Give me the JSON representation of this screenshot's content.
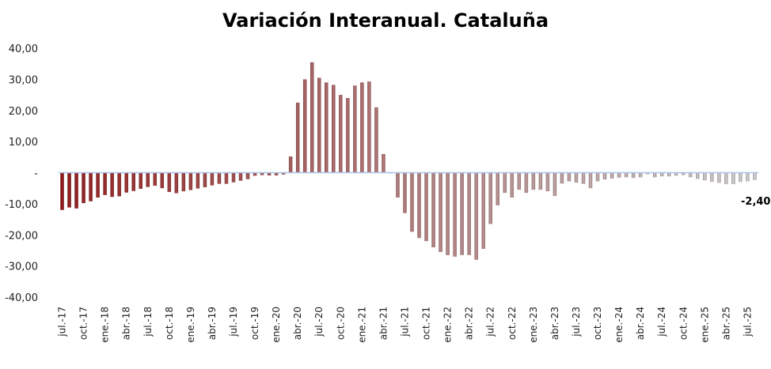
{
  "chart_data": {
    "type": "bar",
    "title": "Variación Interanual. Cataluña",
    "ylim": [
      -40,
      40
    ],
    "yticks": [
      {
        "value": 40,
        "label": "40,00"
      },
      {
        "value": 30,
        "label": "30,00"
      },
      {
        "value": 20,
        "label": "20,00"
      },
      {
        "value": 10,
        "label": "10,00"
      },
      {
        "value": 0,
        "label": "-"
      },
      {
        "value": -10,
        "label": "-10,00"
      },
      {
        "value": -20,
        "label": "-20,00"
      },
      {
        "value": -30,
        "label": "-30,00"
      },
      {
        "value": -40,
        "label": "-40,00"
      }
    ],
    "x_labels": [
      {
        "index": 0,
        "label": "jul.-17"
      },
      {
        "index": 3,
        "label": "oct.-17"
      },
      {
        "index": 6,
        "label": "ene.-18"
      },
      {
        "index": 9,
        "label": "abr.-18"
      },
      {
        "index": 12,
        "label": "jul.-18"
      },
      {
        "index": 15,
        "label": "oct.-18"
      },
      {
        "index": 18,
        "label": "ene.-19"
      },
      {
        "index": 21,
        "label": "abr.-19"
      },
      {
        "index": 24,
        "label": "jul.-19"
      },
      {
        "index": 27,
        "label": "oct.-19"
      },
      {
        "index": 30,
        "label": "ene.-20"
      },
      {
        "index": 33,
        "label": "abr.-20"
      },
      {
        "index": 36,
        "label": "jul.-20"
      },
      {
        "index": 39,
        "label": "oct.-20"
      },
      {
        "index": 42,
        "label": "ene.-21"
      },
      {
        "index": 45,
        "label": "abr.-21"
      },
      {
        "index": 48,
        "label": "jul.-21"
      },
      {
        "index": 51,
        "label": "oct.-21"
      },
      {
        "index": 54,
        "label": "ene.-22"
      },
      {
        "index": 57,
        "label": "abr.-22"
      },
      {
        "index": 60,
        "label": "jul.-22"
      },
      {
        "index": 63,
        "label": "oct.-22"
      },
      {
        "index": 66,
        "label": "ene.-23"
      },
      {
        "index": 69,
        "label": "abr.-23"
      },
      {
        "index": 72,
        "label": "jul.-23"
      },
      {
        "index": 75,
        "label": "oct.-23"
      },
      {
        "index": 78,
        "label": "ene.-24"
      },
      {
        "index": 81,
        "label": "abr.-24"
      },
      {
        "index": 84,
        "label": "jul.-24"
      },
      {
        "index": 87,
        "label": "oct.-24"
      },
      {
        "index": 90,
        "label": "ene.-25"
      },
      {
        "index": 93,
        "label": "abr.-25"
      },
      {
        "index": 96,
        "label": "jul.-25"
      }
    ],
    "values": [
      -12.0,
      -11.2,
      -11.5,
      -9.8,
      -9.2,
      -8.0,
      -7.2,
      -7.8,
      -7.6,
      -6.4,
      -5.9,
      -5.2,
      -4.6,
      -4.2,
      -5.0,
      -6.2,
      -6.6,
      -6.0,
      -5.6,
      -5.1,
      -4.7,
      -4.1,
      -3.6,
      -3.6,
      -3.1,
      -2.6,
      -2.1,
      -1.0,
      -0.8,
      -0.9,
      -0.9,
      -0.6,
      5.2,
      22.5,
      30.0,
      35.5,
      30.5,
      29.0,
      28.2,
      25.0,
      24.0,
      28.0,
      29.0,
      29.3,
      21.0,
      6.0,
      -0.2,
      -8.0,
      -13.0,
      -19.0,
      -21.0,
      -22.0,
      -24.0,
      -25.5,
      -26.5,
      -27.0,
      -26.5,
      -26.5,
      -28.0,
      -24.5,
      -16.5,
      -10.5,
      -6.5,
      -8.0,
      -5.5,
      -6.5,
      -5.5,
      -5.5,
      -6.0,
      -7.5,
      -3.5,
      -2.8,
      -3.2,
      -3.6,
      -5.0,
      -2.8,
      -2.2,
      -1.9,
      -1.6,
      -1.5,
      -1.7,
      -1.5,
      -0.5,
      -1.5,
      -1.2,
      -1.2,
      -1.0,
      -0.8,
      -1.5,
      -2.0,
      -2.5,
      -3.0,
      -3.3,
      -3.7,
      -3.7,
      -3.0,
      -2.8,
      -2.4
    ],
    "last_value_label": "-2,40",
    "colors": {
      "start": "#8b1a1a",
      "end": "#c0c0c0",
      "zero_line": "#a9c4e8"
    },
    "grid": false,
    "legend": "none"
  }
}
